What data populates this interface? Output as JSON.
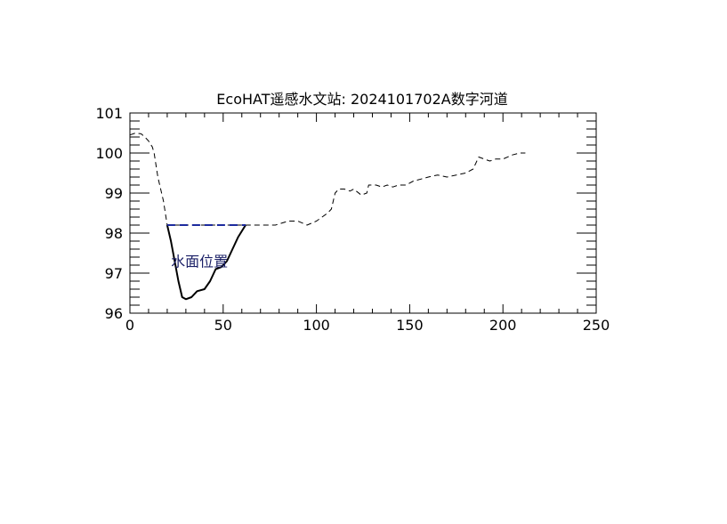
{
  "chart_data": {
    "type": "line",
    "title": "EcoHAT遥感水文站: 2024101702A数字河道",
    "xlabel": "",
    "ylabel": "",
    "xlim": [
      0,
      250
    ],
    "ylim": [
      96,
      101
    ],
    "x_ticks": [
      "0",
      "50",
      "100",
      "150",
      "200",
      "250"
    ],
    "y_ticks": [
      "96",
      "97",
      "98",
      "99",
      "100",
      "101"
    ],
    "grid": false,
    "annotations": [
      {
        "text": "水面位置",
        "x": 22,
        "y": 97.3
      }
    ],
    "series": [
      {
        "style": "dashed",
        "color": "#000000",
        "points": [
          [
            0,
            100.45
          ],
          [
            3,
            100.5
          ],
          [
            6,
            100.48
          ],
          [
            8,
            100.4
          ],
          [
            10,
            100.3
          ],
          [
            12,
            100.15
          ],
          [
            13,
            100.0
          ],
          [
            14,
            99.7
          ],
          [
            15,
            99.4
          ],
          [
            16,
            99.2
          ],
          [
            17,
            99.0
          ],
          [
            18,
            98.8
          ],
          [
            19,
            98.5
          ],
          [
            20,
            98.2
          ],
          [
            62,
            98.2
          ],
          [
            70,
            98.2
          ],
          [
            78,
            98.2
          ],
          [
            85,
            98.3
          ],
          [
            90,
            98.3
          ],
          [
            95,
            98.2
          ],
          [
            100,
            98.3
          ],
          [
            103,
            98.4
          ],
          [
            106,
            98.5
          ],
          [
            108,
            98.6
          ],
          [
            110,
            99.0
          ],
          [
            112,
            99.1
          ],
          [
            115,
            99.1
          ],
          [
            118,
            99.05
          ],
          [
            120,
            99.1
          ],
          [
            124,
            98.95
          ],
          [
            127,
            99.0
          ],
          [
            128,
            99.2
          ],
          [
            132,
            99.2
          ],
          [
            135,
            99.15
          ],
          [
            138,
            99.2
          ],
          [
            141,
            99.15
          ],
          [
            144,
            99.2
          ],
          [
            148,
            99.2
          ],
          [
            152,
            99.3
          ],
          [
            156,
            99.35
          ],
          [
            160,
            99.4
          ],
          [
            165,
            99.45
          ],
          [
            170,
            99.4
          ],
          [
            175,
            99.45
          ],
          [
            180,
            99.5
          ],
          [
            184,
            99.6
          ],
          [
            187,
            99.9
          ],
          [
            190,
            99.85
          ],
          [
            193,
            99.8
          ],
          [
            196,
            99.85
          ],
          [
            200,
            99.85
          ],
          [
            205,
            99.95
          ],
          [
            209,
            100.0
          ],
          [
            212,
            100.0
          ]
        ]
      },
      {
        "style": "solid",
        "color": "#000000",
        "points": [
          [
            20,
            98.2
          ],
          [
            22,
            97.8
          ],
          [
            24,
            97.3
          ],
          [
            26,
            96.8
          ],
          [
            28,
            96.4
          ],
          [
            30,
            96.35
          ],
          [
            33,
            96.4
          ],
          [
            36,
            96.55
          ],
          [
            40,
            96.6
          ],
          [
            43,
            96.8
          ],
          [
            46,
            97.1
          ],
          [
            49,
            97.15
          ],
          [
            52,
            97.3
          ],
          [
            55,
            97.6
          ],
          [
            58,
            97.9
          ],
          [
            62,
            98.2
          ]
        ]
      },
      {
        "style": "dashed",
        "color": "#1c2a9e",
        "points": [
          [
            20,
            98.2
          ],
          [
            62,
            98.2
          ]
        ]
      }
    ]
  }
}
